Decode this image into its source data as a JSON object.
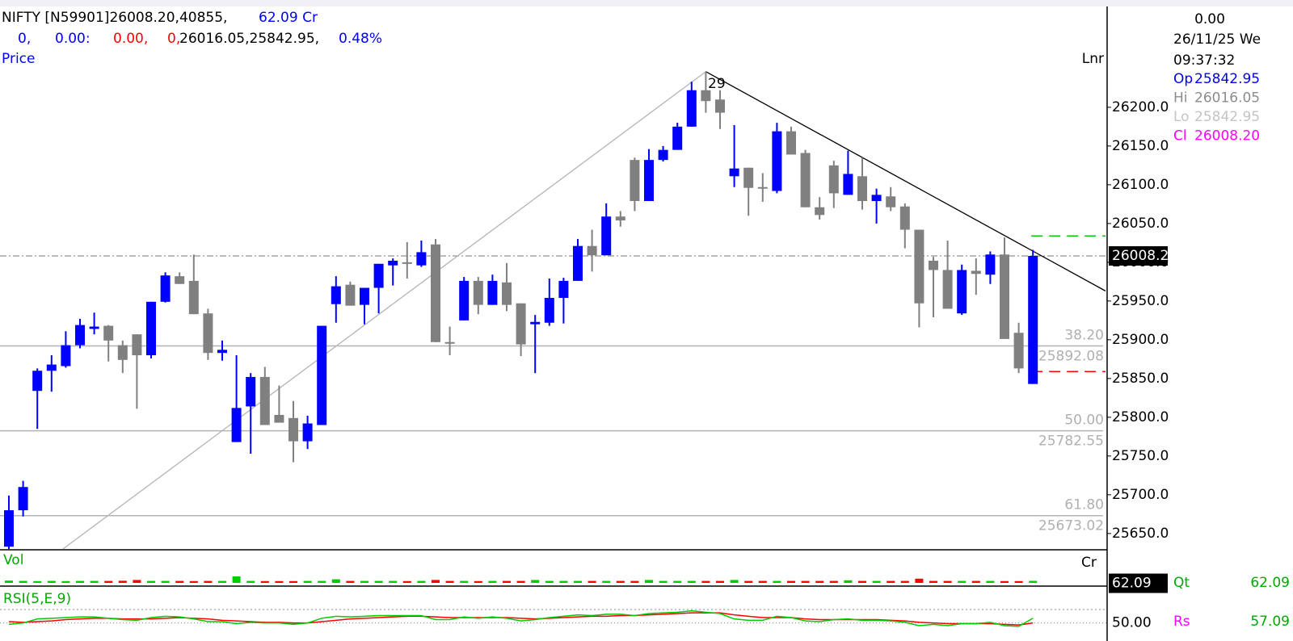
{
  "chart_data": {
    "type": "candlestick",
    "header": {
      "line1": [
        {
          "text": "NIFTY [N59901]26008.20,40855,",
          "color": "#000000"
        },
        {
          "text": "62.09 Cr",
          "color": "#0000ff"
        }
      ],
      "line2": [
        {
          "text": "0,",
          "color": "#0000ff"
        },
        {
          "text": "0.00:",
          "color": "#0000ff"
        },
        {
          "text": "0.00,",
          "color": "#ff0000"
        },
        {
          "text": "0,",
          "color": "#ff0000"
        },
        {
          "text": "26016.05,25842.95,",
          "color": "#000000"
        },
        {
          "text": "0.48%",
          "color": "#0000ff"
        }
      ]
    },
    "panel_label": "Price",
    "scale_label": "Lnr",
    "annotation": "29",
    "open": [
      25633,
      25680,
      25834,
      25860,
      25866,
      25893,
      25914,
      25918,
      25893,
      25907,
      25880,
      25949,
      25982,
      25976,
      25934,
      25883,
      25768,
      25814,
      25852,
      25803,
      25799,
      25769,
      25790,
      25946,
      25971,
      25945,
      25967,
      25996,
      26000,
      25996,
      26023,
      25897,
      25925,
      25976,
      25945,
      25974,
      25947,
      25920,
      25922,
      25954,
      25976,
      26021,
      26009,
      26059,
      26132,
      26079,
      26132,
      26145,
      26175,
      26222,
      26210,
      26111,
      26122,
      26097,
      26092,
      26169,
      26141,
      26071,
      26125,
      26087,
      26111,
      26079,
      26085,
      26072,
      26042,
      26002,
      25990,
      25934,
      25989,
      25984,
      26010,
      25909,
      25842.95
    ],
    "high": [
      25699,
      25718,
      25863,
      25880,
      25911,
      25927,
      25935,
      25919,
      25899,
      25907,
      25949,
      25987,
      25987,
      26010,
      25940,
      25899,
      25880,
      25857,
      25865,
      25841,
      25821,
      25802,
      25918,
      25982,
      25975,
      25967,
      25998,
      26005,
      26026,
      26028,
      26030,
      25917,
      25981,
      25981,
      25984,
      25999,
      25947,
      25932,
      25979,
      25980,
      26030,
      26042,
      26076,
      26066,
      26135,
      26146,
      26150,
      26180,
      26233,
      26246,
      26222,
      26177,
      26122,
      26115,
      26180,
      26175,
      26145,
      26084,
      26131,
      26144,
      26135,
      26095,
      26097,
      26076,
      26042,
      26007,
      26028,
      25997,
      26005,
      26014,
      26032,
      25922,
      26016.05
    ],
    "low": [
      25630,
      25672,
      25785,
      25833,
      25864,
      25889,
      25907,
      25872,
      25857,
      25811,
      25876,
      25948,
      25972,
      25933,
      25874,
      25873,
      25768,
      25753,
      25790,
      25793,
      25742,
      25759,
      25790,
      25922,
      25944,
      25920,
      25934,
      25970,
      25979,
      25994,
      25897,
      25880,
      25925,
      25933,
      25945,
      25937,
      25879,
      25857,
      25918,
      25921,
      25976,
      25988,
      26009,
      26046,
      26066,
      26079,
      26130,
      26145,
      26175,
      26193,
      26172,
      26097,
      26060,
      26078,
      26089,
      26139,
      26071,
      26055,
      26070,
      26087,
      26068,
      26050,
      26066,
      26018,
      25916,
      25929,
      25940,
      25932,
      25958,
      25972,
      25901,
      25857,
      25842.95
    ],
    "close": [
      25680,
      25710,
      25860,
      25868,
      25893,
      25919,
      25917,
      25899,
      25874,
      25880,
      25949,
      25983,
      25972,
      25933,
      25883,
      25887,
      25812,
      25852,
      25790,
      25793,
      25769,
      25792,
      25918,
      25969,
      25944,
      25967,
      25998,
      26002,
      25999,
      26013,
      25897,
      25896,
      25976,
      25945,
      25976,
      25945,
      25894,
      25923,
      25954,
      25976,
      26021,
      26009,
      26059,
      26054,
      26079,
      26132,
      26145,
      26175,
      26222,
      26208,
      26193,
      26121,
      26096,
      26095,
      26169,
      26139,
      26071,
      26061,
      26089,
      26114,
      26079,
      26087,
      26071,
      26042,
      25947,
      25990,
      25940,
      25990,
      25985,
      26010,
      25901,
      25863,
      26008.2
    ],
    "up_color": "#0000ff",
    "down_color": "#808080",
    "ylim": [
      25629,
      26328
    ],
    "yticks": [
      {
        "value": 25650,
        "label": "25650.0"
      },
      {
        "value": 25700,
        "label": "25700.0"
      },
      {
        "value": 25750,
        "label": "25750.0"
      },
      {
        "value": 25800,
        "label": "25800.0"
      },
      {
        "value": 25850,
        "label": "25850.0"
      },
      {
        "value": 25900,
        "label": "25900.0"
      },
      {
        "value": 25950,
        "label": "25950.0"
      },
      {
        "value": 26000,
        "label": "26000.0"
      },
      {
        "value": 26050,
        "label": "26050.0"
      },
      {
        "value": 26100,
        "label": "26100.0"
      },
      {
        "value": 26150,
        "label": "26150.0"
      },
      {
        "value": 26200,
        "label": "26200.0"
      }
    ],
    "price_tag": {
      "value": 26008.2,
      "label": "26008.2"
    },
    "fib_levels": [
      {
        "label": "38.20",
        "value": 25892.08
      },
      {
        "label": "50.00",
        "value": 25782.55
      },
      {
        "label": "61.80",
        "value": 25673.02
      }
    ],
    "levels": [
      {
        "value": 26034,
        "color": "#00cc00"
      },
      {
        "value": 25859,
        "color": "#ff0000"
      }
    ],
    "trendlines": [
      {
        "color": "#b4b4b4",
        "x": [
          3.8,
          49
        ],
        "y": [
          25630,
          26246
        ]
      },
      {
        "color": "#000000",
        "x": [
          49,
          77.1
        ],
        "y": [
          26246,
          25963
        ]
      }
    ],
    "info": {
      "change": "0.00",
      "date": "26/11/25 We",
      "time": "09:37:32",
      "rows": [
        {
          "label": "Op",
          "value": "25842.95",
          "color": "#0000ff"
        },
        {
          "label": "Hi",
          "value": "26016.05",
          "color": "#8c8c8c"
        },
        {
          "label": "Lo",
          "value": "25842.95",
          "color": "#c4c4c4"
        },
        {
          "label": "Cl",
          "value": "26008.20",
          "color": "#ff00ff"
        }
      ]
    },
    "volume": {
      "label": "Vol",
      "unit": "Cr",
      "values": [
        70,
        60,
        55,
        60,
        55,
        60,
        60,
        60,
        65,
        90,
        60,
        60,
        60,
        55,
        60,
        60,
        200,
        60,
        55,
        55,
        55,
        60,
        60,
        110,
        60,
        60,
        60,
        60,
        55,
        60,
        90,
        60,
        60,
        55,
        60,
        60,
        60,
        90,
        60,
        60,
        60,
        60,
        60,
        60,
        60,
        90,
        60,
        60,
        60,
        60,
        60,
        90,
        60,
        60,
        60,
        60,
        60,
        60,
        60,
        80,
        60,
        60,
        60,
        60,
        130,
        60,
        60,
        60,
        60,
        60,
        55,
        55,
        62.09
      ],
      "ylim": [
        0,
        900
      ],
      "up_color": "#00cc00",
      "down_color": "#ff0000",
      "tag": 62.09,
      "qt_label": "Qt",
      "qt_value": 62.09
    },
    "rsi": {
      "label": "RSI(5,E,9)",
      "values": [
        48,
        50,
        56,
        57,
        58,
        59,
        59,
        57,
        55,
        54,
        58,
        60,
        59,
        56,
        52,
        52,
        49,
        51,
        50,
        50,
        48,
        50,
        57,
        60,
        59,
        60,
        61,
        61,
        61,
        61,
        55,
        55,
        59,
        57,
        59,
        57,
        53,
        55,
        58,
        60,
        62,
        61,
        63,
        63,
        61,
        64,
        65,
        66,
        68,
        66,
        64,
        56,
        54,
        54,
        60,
        58,
        53,
        52,
        55,
        56,
        54,
        54,
        53,
        51,
        46,
        48,
        46,
        49,
        49,
        51,
        46,
        45,
        57.09
      ],
      "signal": [
        52,
        51,
        52,
        53,
        55,
        56,
        57,
        57,
        56,
        56,
        56,
        57,
        58,
        57,
        56,
        54,
        53,
        52,
        51,
        51,
        50,
        50,
        52,
        54,
        56,
        57,
        58,
        59,
        60,
        60,
        59,
        58,
        58,
        58,
        58,
        58,
        57,
        56,
        57,
        58,
        59,
        60,
        60,
        61,
        61,
        62,
        63,
        64,
        65,
        65,
        65,
        62,
        60,
        58,
        58,
        58,
        56,
        55,
        55,
        55,
        55,
        55,
        54,
        53,
        51,
        50,
        49,
        49,
        49,
        49,
        48,
        47,
        50
      ],
      "color": "#00cc00",
      "signal_color": "#ff0000",
      "ylim": [
        40,
        100
      ],
      "yticks": [
        {
          "value": 50,
          "label": "50.00"
        }
      ],
      "level": 70,
      "rs_label": "Rs",
      "rs_value": 57.09
    }
  }
}
